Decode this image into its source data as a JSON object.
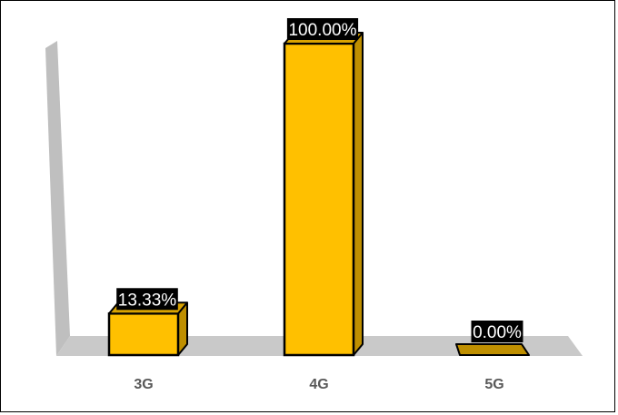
{
  "chart_data": {
    "type": "bar",
    "style": "3d-column",
    "categories": [
      "3G",
      "4G",
      "5G"
    ],
    "values": [
      13.33,
      100.0,
      0.0
    ],
    "data_labels": [
      "13.33%",
      "100.00%",
      "0.00%"
    ],
    "ylim": [
      0,
      100
    ],
    "title": "",
    "xlabel": "",
    "ylabel": "",
    "gridlines": false,
    "legend": "none",
    "y_axis_labels_shown": false
  },
  "colors": {
    "bar_front": "#FFC000",
    "bar_side": "#BF8F00",
    "bar_top": "#D9A300",
    "bar_outline": "#000000",
    "floor": "#C9C9C9",
    "wall": "#BFBFBF",
    "label_bg": "#000000",
    "label_text": "#FFFFFF",
    "category_text": "#595959"
  }
}
